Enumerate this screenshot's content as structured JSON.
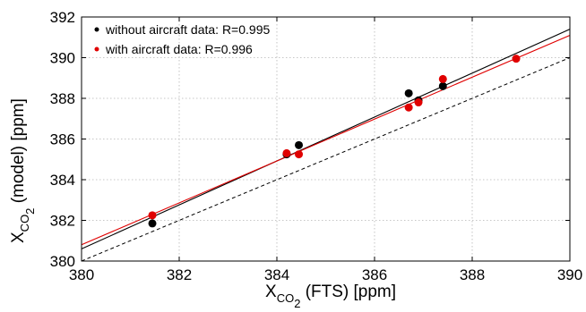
{
  "chart_data": {
    "type": "scatter",
    "xlabel": {
      "main": "X",
      "sub": "CO",
      "sub2": "2",
      "rest": " (FTS) [ppm]"
    },
    "ylabel": {
      "main": "X",
      "sub": "CO",
      "sub2": "2",
      "rest": " (model) [ppm]"
    },
    "xlim": [
      380,
      390
    ],
    "ylim": [
      380,
      392
    ],
    "xticks": [
      380,
      382,
      384,
      386,
      388,
      390
    ],
    "yticks": [
      380,
      382,
      384,
      386,
      388,
      390,
      392
    ],
    "grid": true,
    "legend_position": "top-left",
    "series": [
      {
        "name": "without aircraft data: R=0.995",
        "color": "#000000",
        "points": [
          [
            381.45,
            381.85
          ],
          [
            384.2,
            385.25
          ],
          [
            384.45,
            385.7
          ],
          [
            386.7,
            388.25
          ],
          [
            386.9,
            387.9
          ],
          [
            387.4,
            388.6
          ]
        ],
        "fit": [
          [
            380,
            380.6
          ],
          [
            390,
            391.4
          ]
        ]
      },
      {
        "name": "with aircraft data: R=0.996",
        "color": "#e00000",
        "points": [
          [
            381.45,
            382.25
          ],
          [
            384.2,
            385.3
          ],
          [
            384.45,
            385.25
          ],
          [
            386.7,
            387.55
          ],
          [
            386.9,
            387.8
          ],
          [
            387.4,
            388.95
          ],
          [
            388.9,
            389.95
          ]
        ],
        "fit": [
          [
            380,
            380.8
          ],
          [
            390,
            391.1
          ]
        ]
      }
    ],
    "reference_line": {
      "style": "dashed",
      "color": "#000000",
      "points": [
        [
          380,
          380
        ],
        [
          390,
          390
        ]
      ]
    }
  }
}
